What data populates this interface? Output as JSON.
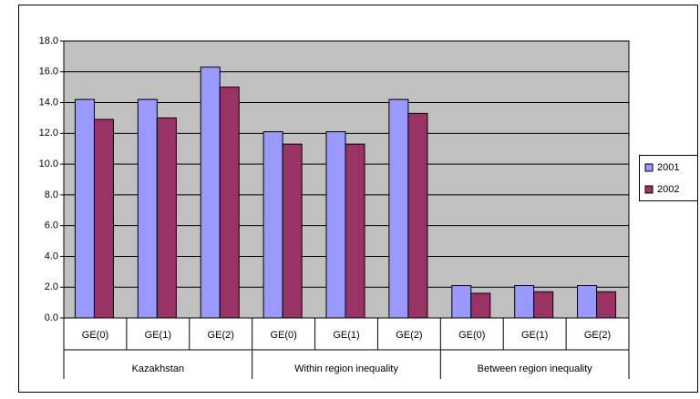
{
  "chart_data": {
    "type": "bar",
    "groups": [
      {
        "name": "Kazakhstan",
        "categories": [
          "GE(0)",
          "GE(1)",
          "GE(2)"
        ]
      },
      {
        "name": "Within region inequality",
        "categories": [
          "GE(0)",
          "GE(1)",
          "GE(2)"
        ]
      },
      {
        "name": "Between region inequality",
        "categories": [
          "GE(0)",
          "GE(1)",
          "GE(2)"
        ]
      }
    ],
    "series": [
      {
        "name": "2001",
        "color": "#9999ff",
        "values": [
          14.2,
          14.2,
          16.3,
          12.1,
          12.1,
          14.2,
          2.1,
          2.1,
          2.1
        ]
      },
      {
        "name": "2002",
        "color": "#993366",
        "values": [
          12.9,
          13.0,
          15.0,
          11.3,
          11.3,
          13.3,
          1.6,
          1.7,
          1.7
        ]
      }
    ],
    "ylim": [
      0,
      18
    ],
    "yticks": [
      {
        "value": 0,
        "label": "0.0"
      },
      {
        "value": 2,
        "label": "2.0"
      },
      {
        "value": 4,
        "label": "4.0"
      },
      {
        "value": 6,
        "label": "6.0"
      },
      {
        "value": 8,
        "label": "8.0"
      },
      {
        "value": 10,
        "label": "10.0"
      },
      {
        "value": 12,
        "label": "12.0"
      },
      {
        "value": 14,
        "label": "14.0"
      },
      {
        "value": 16,
        "label": "16.0"
      },
      {
        "value": 18,
        "label": "18.0"
      }
    ],
    "grid": true,
    "plot_background": "#c0c0c0",
    "legend": "right"
  }
}
